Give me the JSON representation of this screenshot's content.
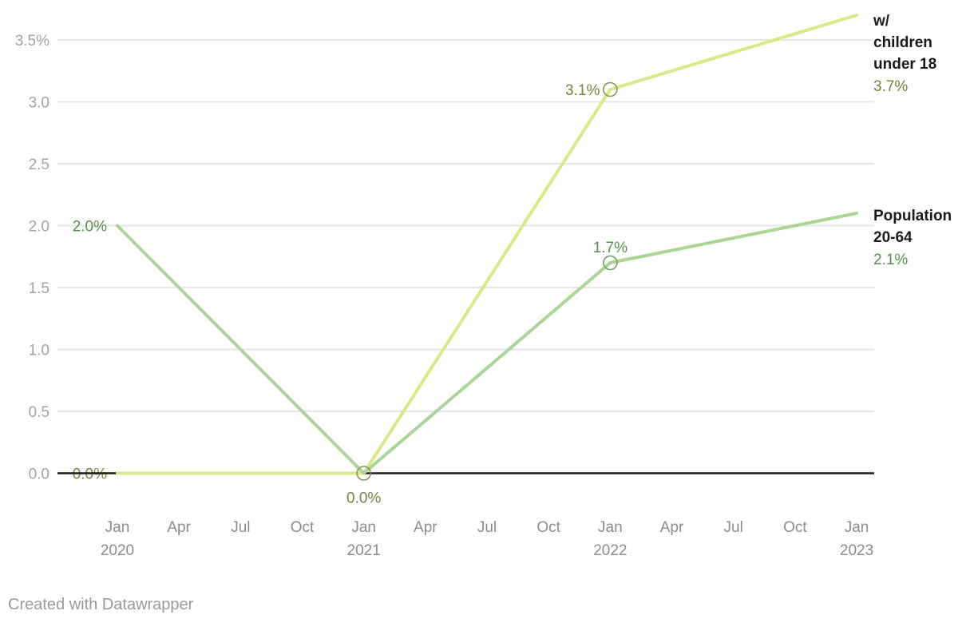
{
  "chart_data": {
    "type": "line",
    "title": "",
    "xlabel": "",
    "ylabel": "",
    "ylim": [
      0,
      3.7
    ],
    "grid": "horizontal",
    "legend_position": "right-end-of-line",
    "x_ticks": [
      {
        "m": "Jan",
        "yr": "2020"
      },
      {
        "m": "Apr"
      },
      {
        "m": "Jul"
      },
      {
        "m": "Oct"
      },
      {
        "m": "Jan",
        "yr": "2021"
      },
      {
        "m": "Apr"
      },
      {
        "m": "Jul"
      },
      {
        "m": "Oct"
      },
      {
        "m": "Jan",
        "yr": "2022"
      },
      {
        "m": "Apr"
      },
      {
        "m": "Jul"
      },
      {
        "m": "Oct"
      },
      {
        "m": "Jan",
        "yr": "2023"
      }
    ],
    "y_ticks": [
      {
        "v": 0,
        "label": "0.0"
      },
      {
        "v": 0.5,
        "label": "0.5"
      },
      {
        "v": 1,
        "label": "1.0"
      },
      {
        "v": 1.5,
        "label": "1.5"
      },
      {
        "v": 2,
        "label": "2.0"
      },
      {
        "v": 2.5,
        "label": "2.5"
      },
      {
        "v": 3,
        "label": "3.0"
      },
      {
        "v": 3.5,
        "label": "3.5%"
      }
    ],
    "series": [
      {
        "id": "children-under-18",
        "name": "w/ children under 18",
        "line_color": "#dbe887",
        "label_color": "#7c8139",
        "marker_color": "#8e9351",
        "points": [
          {
            "t": 0,
            "v": 0.0
          },
          {
            "t": 4,
            "v": 0.0
          },
          {
            "t": 8,
            "v": 3.1
          },
          {
            "t": 12,
            "v": 3.7
          }
        ],
        "point_labels": [
          {
            "t": 0,
            "v": 0.0,
            "text": "0.0%",
            "placement": "left",
            "layer": "below"
          },
          {
            "t": 4,
            "v": 0.0,
            "text": "0.0%",
            "placement": "below",
            "marker": true
          },
          {
            "t": 8,
            "v": 3.1,
            "text": "3.1%",
            "placement": "left",
            "marker": true
          }
        ],
        "end_label": {
          "name": "w/ children under 18",
          "value": "3.7%"
        }
      },
      {
        "id": "population-20-64",
        "name": "Population 20-64",
        "line_color": "#a8d694",
        "label_color": "#55904a",
        "marker_color": "#6fa05e",
        "points": [
          {
            "t": 0,
            "v": 2.0
          },
          {
            "t": 4,
            "v": 0.0
          },
          {
            "t": 8,
            "v": 1.7
          },
          {
            "t": 12,
            "v": 2.1
          }
        ],
        "point_labels": [
          {
            "t": 0,
            "v": 2.0,
            "text": "2.0%",
            "placement": "left"
          },
          {
            "t": 8,
            "v": 1.7,
            "text": "1.7%",
            "placement": "above",
            "marker": true
          }
        ],
        "end_label": {
          "name": "Population 20-64",
          "value": "2.1%"
        }
      }
    ],
    "colors": {
      "grid": "#e6e6e6",
      "axis": "#1a1a1a",
      "y_tick_text": "#a3a3a3",
      "x_tick_text": "#8c8c8c"
    }
  },
  "footer": {
    "credit": "Created with Datawrapper"
  }
}
